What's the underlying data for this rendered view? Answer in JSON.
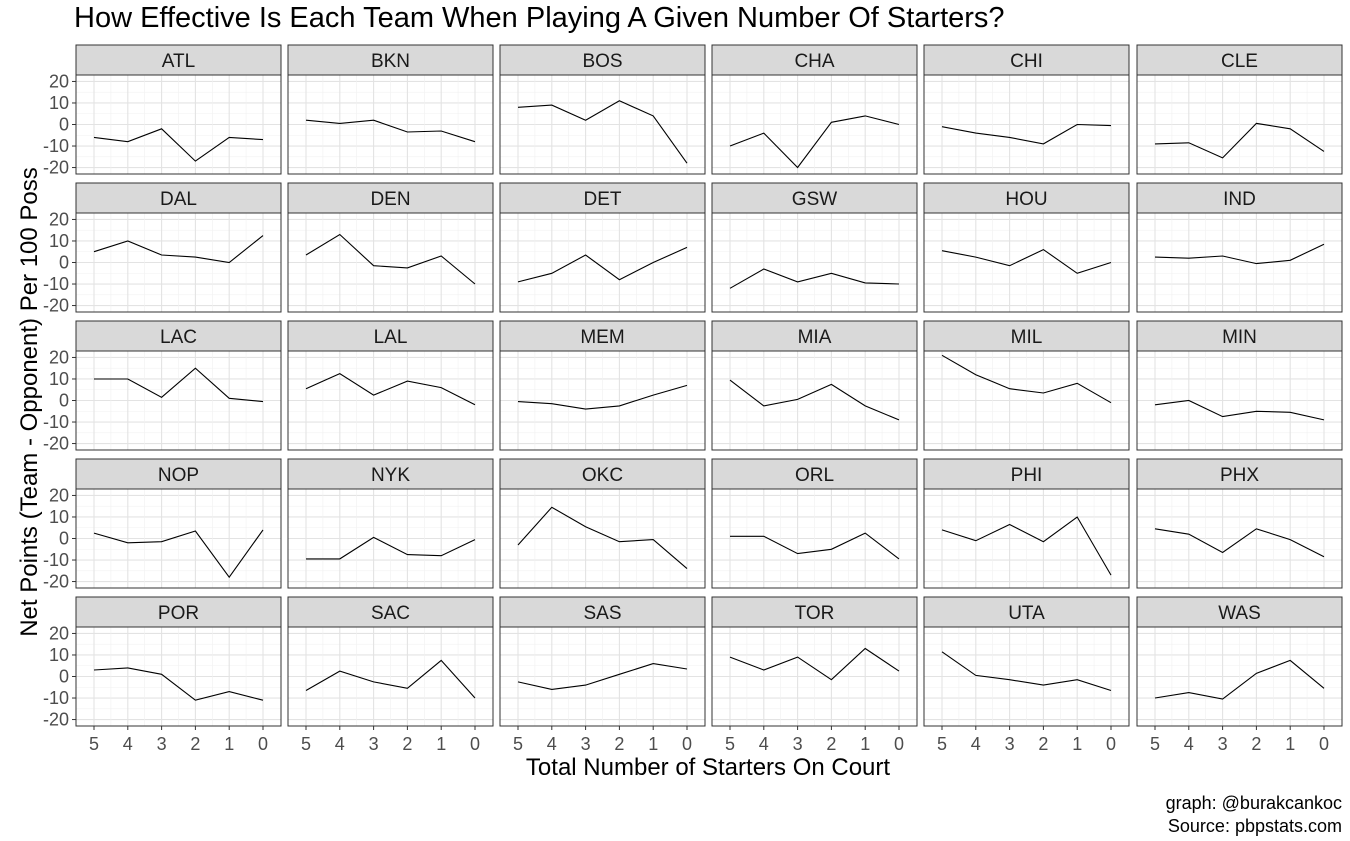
{
  "chart_data": {
    "type": "line",
    "title": "How Effective Is Each Team When Playing A Given Number Of Starters?",
    "xlabel": "Total Number of Starters On Court",
    "ylabel": "Net Points (Team - Opponent) Per 100 Poss",
    "x": [
      5,
      4,
      3,
      2,
      1,
      0
    ],
    "x_reversed": true,
    "ylim": [
      -23,
      23
    ],
    "yticks": [
      20,
      10,
      0,
      -10,
      -20
    ],
    "grid": true,
    "facets": [
      {
        "team": "ATL",
        "values": [
          -6,
          -8,
          -2,
          -17,
          -6,
          -7
        ]
      },
      {
        "team": "BKN",
        "values": [
          2,
          0.5,
          2,
          -3.5,
          -3,
          -8
        ]
      },
      {
        "team": "BOS",
        "values": [
          8,
          9,
          2,
          11,
          4,
          -18
        ]
      },
      {
        "team": "CHA",
        "values": [
          -10,
          -4,
          -20,
          1,
          4,
          0
        ]
      },
      {
        "team": "CHI",
        "values": [
          -1,
          -4,
          -6,
          -9,
          0,
          -0.5
        ]
      },
      {
        "team": "CLE",
        "values": [
          -9,
          -8.5,
          -15.5,
          0.5,
          -2,
          -12.5
        ]
      },
      {
        "team": "DAL",
        "values": [
          5,
          10,
          3.5,
          2.5,
          0,
          12.5
        ]
      },
      {
        "team": "DEN",
        "values": [
          3.5,
          13,
          -1.5,
          -2.5,
          3,
          -10
        ]
      },
      {
        "team": "DET",
        "values": [
          -9,
          -5,
          3.5,
          -8,
          0,
          7
        ]
      },
      {
        "team": "GSW",
        "values": [
          -12,
          -3,
          -9,
          -5,
          -9.5,
          -10
        ]
      },
      {
        "team": "HOU",
        "values": [
          5.5,
          2.5,
          -1.5,
          6,
          -5,
          0
        ]
      },
      {
        "team": "IND",
        "values": [
          2.5,
          2,
          3,
          -0.5,
          1,
          8.5
        ]
      },
      {
        "team": "LAC",
        "values": [
          10,
          10,
          1.5,
          15,
          1,
          -0.5
        ]
      },
      {
        "team": "LAL",
        "values": [
          5.5,
          12.5,
          2.5,
          9,
          6,
          -2
        ]
      },
      {
        "team": "MEM",
        "values": [
          -0.5,
          -1.5,
          -4,
          -2.5,
          2.5,
          7
        ]
      },
      {
        "team": "MIA",
        "values": [
          9.5,
          -2.5,
          0.5,
          7.5,
          -2.5,
          -9
        ]
      },
      {
        "team": "MIL",
        "values": [
          21,
          12,
          5.5,
          3.5,
          8,
          -1
        ]
      },
      {
        "team": "MIN",
        "values": [
          -2,
          0,
          -7.5,
          -5,
          -5.5,
          -9
        ]
      },
      {
        "team": "NOP",
        "values": [
          2.5,
          -2,
          -1.5,
          3.5,
          -18,
          4
        ]
      },
      {
        "team": "NYK",
        "values": [
          -9.5,
          -9.5,
          0.5,
          -7.5,
          -8,
          -0.5
        ]
      },
      {
        "team": "OKC",
        "values": [
          -3,
          14.5,
          5.5,
          -1.5,
          -0.5,
          -14
        ]
      },
      {
        "team": "ORL",
        "values": [
          1,
          1,
          -7,
          -5,
          2.5,
          -9.5
        ]
      },
      {
        "team": "PHI",
        "values": [
          4,
          -1,
          6.5,
          -1.5,
          10,
          -17
        ]
      },
      {
        "team": "PHX",
        "values": [
          4.5,
          2,
          -6.5,
          4.5,
          -0.5,
          -8.5
        ]
      },
      {
        "team": "POR",
        "values": [
          3,
          4,
          1,
          -11,
          -7,
          -11
        ]
      },
      {
        "team": "SAC",
        "values": [
          -6.5,
          2.5,
          -2.5,
          -5.5,
          7.5,
          -10
        ]
      },
      {
        "team": "SAS",
        "values": [
          -2.5,
          -6,
          -4,
          1,
          6,
          3.5
        ]
      },
      {
        "team": "TOR",
        "values": [
          9,
          3,
          9,
          -1.5,
          13,
          2.5
        ]
      },
      {
        "team": "UTA",
        "values": [
          11.5,
          0.5,
          -1.5,
          -4,
          -1.5,
          -6.5
        ]
      },
      {
        "team": "WAS",
        "values": [
          -10,
          -7.5,
          -10.5,
          1.5,
          7.5,
          -5.5
        ]
      }
    ]
  },
  "caption": {
    "line1": "graph: @burakcankoc",
    "line2": "Source: pbpstats.com"
  }
}
